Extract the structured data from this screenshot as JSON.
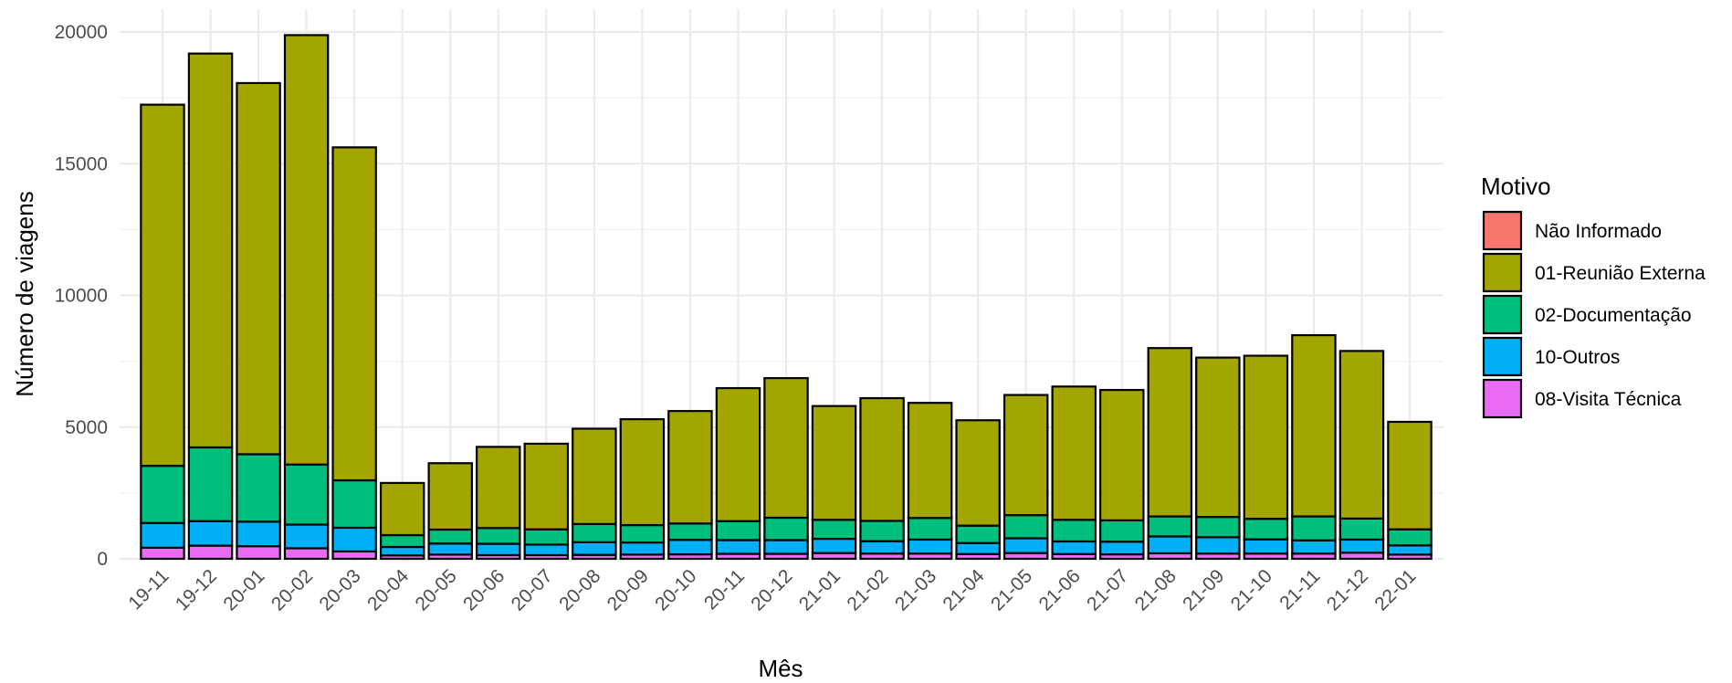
{
  "chart_data": {
    "type": "bar",
    "stacked": true,
    "xlabel": "Mês",
    "ylabel": "Número de viagens",
    "ylim": [
      0,
      20000
    ],
    "yticks": [
      0,
      5000,
      10000,
      15000,
      20000
    ],
    "grid": true,
    "legend_title": "Motivo",
    "legend_position": "right",
    "categories": [
      "19-11",
      "19-12",
      "20-01",
      "20-02",
      "20-03",
      "20-04",
      "20-05",
      "20-06",
      "20-07",
      "20-08",
      "20-09",
      "20-10",
      "20-11",
      "20-12",
      "21-01",
      "21-02",
      "21-03",
      "21-04",
      "21-05",
      "21-06",
      "21-07",
      "21-08",
      "21-09",
      "21-10",
      "21-11",
      "21-12",
      "22-01"
    ],
    "series": [
      {
        "name": "Não Informado",
        "color": "#F8766D",
        "values": [
          0,
          0,
          0,
          0,
          0,
          0,
          0,
          0,
          0,
          0,
          0,
          0,
          0,
          0,
          0,
          0,
          0,
          0,
          0,
          0,
          0,
          0,
          0,
          0,
          0,
          0,
          0
        ]
      },
      {
        "name": "08-Visita Técnica",
        "color": "#E76BF3",
        "values": [
          420,
          500,
          480,
          400,
          280,
          130,
          160,
          140,
          140,
          150,
          160,
          170,
          190,
          190,
          220,
          200,
          200,
          180,
          220,
          180,
          170,
          210,
          200,
          200,
          200,
          230,
          160
        ]
      },
      {
        "name": "10-Outros",
        "color": "#00B0F6",
        "values": [
          940,
          930,
          930,
          900,
          900,
          320,
          420,
          430,
          400,
          480,
          460,
          550,
          520,
          520,
          540,
          470,
          530,
          420,
          560,
          480,
          480,
          640,
          620,
          540,
          500,
          500,
          350
        ]
      },
      {
        "name": "02-Documentação",
        "color": "#00BF7D",
        "values": [
          2170,
          2800,
          2560,
          2280,
          1800,
          450,
          530,
          600,
          580,
          690,
          660,
          620,
          720,
          850,
          720,
          770,
          820,
          660,
          880,
          820,
          810,
          760,
          770,
          780,
          910,
          800,
          610
        ]
      },
      {
        "name": "01-Reunião Externa",
        "color": "#A3A500",
        "values": [
          13710,
          14950,
          14090,
          16300,
          12640,
          1980,
          2520,
          3080,
          3250,
          3620,
          4020,
          4270,
          5050,
          5300,
          4320,
          4660,
          4370,
          4000,
          4560,
          5060,
          4950,
          6390,
          6050,
          6190,
          6880,
          6360,
          4080
        ]
      }
    ],
    "legend_order": [
      "Não Informado",
      "01-Reunião Externa",
      "02-Documentação",
      "10-Outros",
      "08-Visita Técnica"
    ]
  }
}
